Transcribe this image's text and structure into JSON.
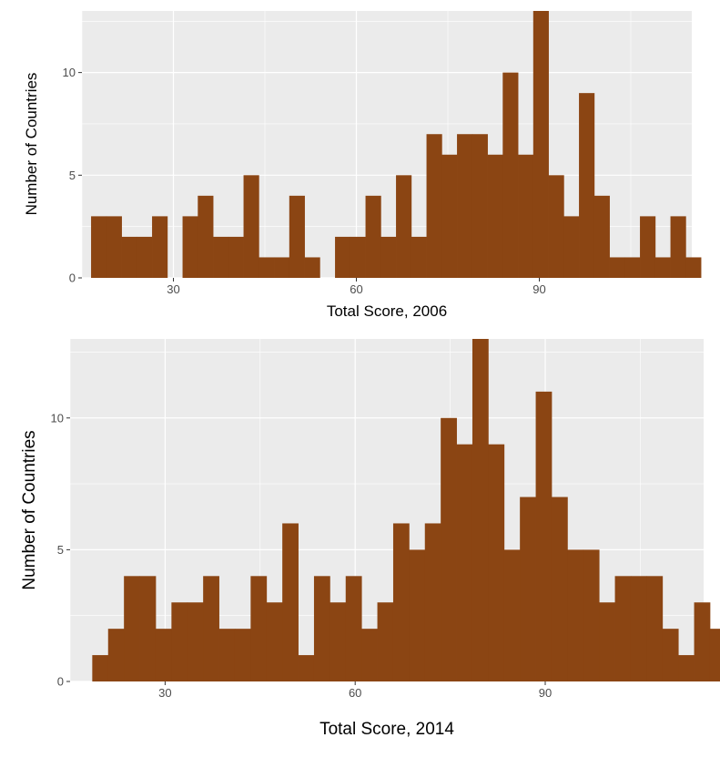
{
  "bar_color": "#8B4513",
  "panel_bg": "#EBEBEB",
  "grid_color": "#FFFFFF",
  "chart_data": [
    {
      "type": "bar",
      "title": "",
      "xlabel": "Total Score, 2006",
      "ylabel": "Number of Countries",
      "xlim": [
        15,
        115
      ],
      "ylim": [
        0,
        13
      ],
      "xticks": [
        30,
        60,
        90
      ],
      "yticks": [
        0,
        5,
        10
      ],
      "grid": true,
      "bin_start": 16.5,
      "bin_width": 2.5,
      "values": [
        3,
        3,
        2,
        2,
        3,
        0,
        3,
        4,
        2,
        2,
        5,
        1,
        1,
        4,
        1,
        0,
        2,
        2,
        4,
        2,
        5,
        2,
        7,
        6,
        7,
        7,
        6,
        10,
        6,
        13,
        5,
        3,
        9,
        4,
        1,
        1,
        3,
        1,
        3,
        1
      ]
    },
    {
      "type": "bar",
      "title": "",
      "xlabel": "Total Score, 2014",
      "ylabel": "Number of Countries",
      "xlim": [
        15,
        115
      ],
      "ylim": [
        0,
        13
      ],
      "xticks": [
        30,
        60,
        90
      ],
      "yticks": [
        0,
        5,
        10
      ],
      "grid": true,
      "bin_start": 18.5,
      "bin_width": 2.5,
      "values": [
        1,
        2,
        4,
        4,
        2,
        3,
        3,
        4,
        2,
        2,
        4,
        3,
        6,
        1,
        4,
        3,
        4,
        2,
        3,
        6,
        5,
        6,
        10,
        9,
        13,
        9,
        5,
        7,
        11,
        7,
        5,
        5,
        3,
        4,
        4,
        4,
        2,
        1,
        3,
        2
      ]
    }
  ]
}
